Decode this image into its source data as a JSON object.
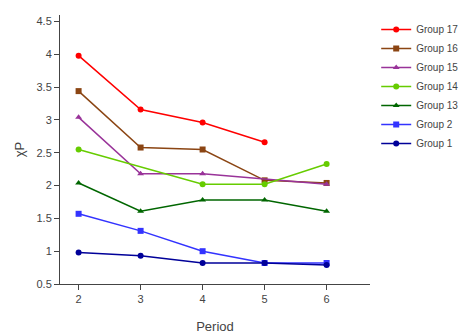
{
  "chart_data": {
    "type": "line",
    "x": [
      2,
      3,
      4,
      5,
      6
    ],
    "series": [
      {
        "name": "Group 17",
        "color": "#ff0000",
        "marker": "circle",
        "values": [
          3.98,
          3.16,
          2.96,
          2.66,
          null
        ]
      },
      {
        "name": "Group 16",
        "color": "#8B4513",
        "marker": "square",
        "values": [
          3.44,
          2.58,
          2.55,
          2.08,
          2.04
        ]
      },
      {
        "name": "Group 15",
        "color": "#993399",
        "marker": "triangle",
        "values": [
          3.04,
          2.18,
          2.18,
          null,
          2.02
        ]
      },
      {
        "name": "Group 14",
        "color": "#66cc00",
        "marker": "circle",
        "values": [
          2.55,
          null,
          2.02,
          2.02,
          2.33
        ]
      },
      {
        "name": "Group 13",
        "color": "#006600",
        "marker": "triangle",
        "values": [
          2.04,
          1.61,
          1.78,
          1.78,
          1.61
        ]
      },
      {
        "name": "Group 2",
        "color": "#3333ff",
        "marker": "square",
        "values": [
          1.57,
          1.31,
          1.0,
          0.82,
          0.82
        ]
      },
      {
        "name": "Group 1",
        "color": "#000099",
        "marker": "circle",
        "values": [
          0.98,
          0.93,
          0.82,
          0.82,
          0.79
        ]
      }
    ],
    "xlabel": "Period",
    "ylabel": "χP",
    "xlim": [
      1.7,
      6.7
    ],
    "ylim": [
      0.5,
      4.6
    ],
    "xticks": [
      2,
      3,
      4,
      5,
      6
    ],
    "yticks": [
      0.5,
      1,
      1.5,
      2,
      2.5,
      3,
      3.5,
      4,
      4.5
    ],
    "grid": false,
    "legend": "upper right"
  }
}
